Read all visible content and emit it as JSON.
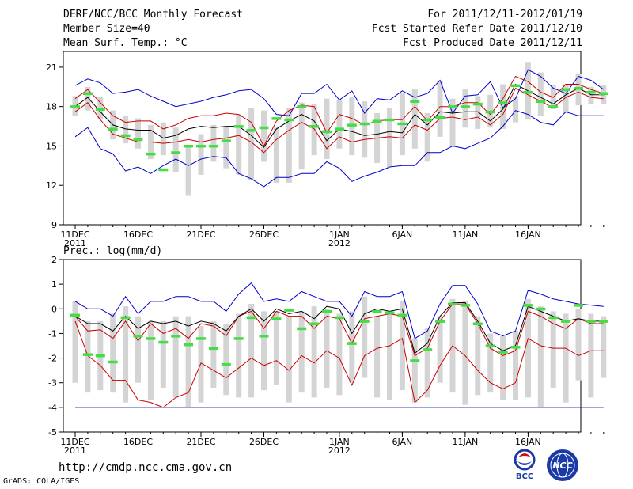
{
  "header": {
    "title": "DERF/NCC/BCC Monthly Forecast",
    "member_size": "Member Size=40",
    "date_range": "For 2011/12/11-2012/01/19",
    "started_refer": "Fcst Started Refer Date 2011/12/10",
    "produced": "Fcst Produced Date 2011/12/11"
  },
  "footer": {
    "url": "http://cmdp.ncc.cma.gov.cn",
    "credit": "GrADS: COLA/IGES",
    "logo_bcc": "BCC",
    "logo_ncc": "NCC"
  },
  "chart_data": [
    {
      "type": "line",
      "title": "Mean Surf. Temp.: °C",
      "ylim": [
        9,
        22.2
      ],
      "yticks": [
        9,
        12,
        15,
        18,
        21
      ],
      "x_tick_days": [
        0,
        5,
        10,
        15,
        21,
        26,
        31,
        36
      ],
      "x_tick_labels": [
        "11DEC",
        "16DEC",
        "21DEC",
        "26DEC",
        "1JAN",
        "6JAN",
        "11JAN",
        "16JAN"
      ],
      "year_labels": [
        {
          "day": 0,
          "text": "2011"
        },
        {
          "day": 21,
          "text": "2012"
        }
      ],
      "colors": {
        "box": "#d4d4d4",
        "median": "#44dd44",
        "max": "#0000cc",
        "upper": "#cc0000",
        "mean": "#000000"
      },
      "box_low": [
        17.3,
        17.7,
        17.0,
        15.5,
        15.2,
        14.8,
        14.0,
        14.3,
        13.0,
        11.2,
        12.8,
        13.8,
        13.3,
        12.8,
        12.4,
        13.8,
        12.2,
        12.2,
        13.2,
        14.3,
        14.0,
        14.8,
        14.3,
        14.1,
        13.7,
        13.4,
        14.3,
        14.8,
        13.8,
        15.7,
        15.0,
        16.4,
        16.3,
        16.4,
        16.3,
        16.8,
        17.0,
        17.3,
        17.8,
        17.5,
        18.1,
        18.2,
        18.2
      ],
      "box_high": [
        18.8,
        19.5,
        18.7,
        17.7,
        17.3,
        17.1,
        16.6,
        16.8,
        16.4,
        15.0,
        15.9,
        16.6,
        16.5,
        17.4,
        17.9,
        17.7,
        16.4,
        17.9,
        18.3,
        18.2,
        18.6,
        18.5,
        18.7,
        18.4,
        17.5,
        17.9,
        19.0,
        19.3,
        17.5,
        20.0,
        18.6,
        19.3,
        18.8,
        18.9,
        19.7,
        18.7,
        21.4,
        20.6,
        19.6,
        19.7,
        20.5,
        19.5,
        19.6
      ],
      "median": [
        18.0,
        19.0,
        17.8,
        16.3,
        15.8,
        15.5,
        14.4,
        13.2,
        14.5,
        15.0,
        15.0,
        15.0,
        15.4,
        16.5,
        16.2,
        16.4,
        17.1,
        17.0,
        18.0,
        16.5,
        16.1,
        16.3,
        16.6,
        16.7,
        16.9,
        17.0,
        16.7,
        18.4,
        17.0,
        17.2,
        18.0,
        18.0,
        18.2,
        17.6,
        18.3,
        19.6,
        19.1,
        18.4,
        18.0,
        19.3,
        19.4,
        19.1,
        19.0
      ],
      "max": [
        19.6,
        20.1,
        19.8,
        19.0,
        19.1,
        19.3,
        18.8,
        18.4,
        18.0,
        18.2,
        18.4,
        18.7,
        18.9,
        19.2,
        19.3,
        18.6,
        17.4,
        17.3,
        19.0,
        19.0,
        19.7,
        18.5,
        19.2,
        17.5,
        18.6,
        18.5,
        19.2,
        18.7,
        19.0,
        20.0,
        17.5,
        18.8,
        18.9,
        19.9,
        17.9,
        18.6,
        20.8,
        20.3,
        19.4,
        19.0,
        20.3,
        20.0,
        19.3
      ],
      "upper": [
        18.6,
        19.3,
        18.3,
        17.3,
        16.8,
        16.9,
        16.9,
        16.3,
        16.6,
        17.1,
        17.3,
        17.3,
        17.5,
        17.4,
        16.8,
        15.0,
        16.9,
        17.7,
        18.1,
        18.0,
        16.0,
        17.4,
        17.1,
        16.6,
        16.9,
        17.0,
        17.0,
        18.0,
        16.9,
        18.0,
        18.0,
        18.3,
        18.3,
        17.4,
        18.6,
        20.3,
        19.9,
        19.1,
        18.7,
        19.7,
        19.7,
        19.3,
        19.0
      ],
      "mean": [
        18.0,
        18.7,
        17.6,
        16.6,
        16.3,
        16.2,
        16.2,
        15.6,
        15.8,
        16.3,
        16.5,
        16.4,
        16.5,
        16.5,
        15.8,
        14.9,
        16.3,
        16.9,
        17.4,
        16.9,
        15.4,
        16.3,
        16.1,
        15.8,
        15.9,
        16.1,
        16.0,
        17.4,
        16.6,
        17.6,
        17.5,
        17.6,
        17.6,
        16.9,
        17.8,
        19.7,
        19.2,
        18.7,
        18.2,
        18.9,
        19.4,
        18.9,
        18.9
      ],
      "lower": [
        17.6,
        18.3,
        17.0,
        15.9,
        15.6,
        15.3,
        15.3,
        15.2,
        15.3,
        15.5,
        15.3,
        15.5,
        15.6,
        15.8,
        15.3,
        14.5,
        15.5,
        16.2,
        16.8,
        16.3,
        14.8,
        15.7,
        15.3,
        15.5,
        15.6,
        15.7,
        15.6,
        16.6,
        16.2,
        17.1,
        17.2,
        17.0,
        17.2,
        16.6,
        17.4,
        19.4,
        18.9,
        18.4,
        17.9,
        18.7,
        19.1,
        18.7,
        18.6
      ],
      "min": [
        15.7,
        16.4,
        14.8,
        14.4,
        13.1,
        13.4,
        12.9,
        13.5,
        14.0,
        13.5,
        14.0,
        14.2,
        14.1,
        12.9,
        12.5,
        11.9,
        12.6,
        12.6,
        12.9,
        12.9,
        13.8,
        13.3,
        12.3,
        12.7,
        13.0,
        13.4,
        13.5,
        13.5,
        14.5,
        14.5,
        15.0,
        14.8,
        15.2,
        15.6,
        16.5,
        17.7,
        17.4,
        16.8,
        16.6,
        17.6,
        17.3,
        17.3,
        17.3
      ]
    },
    {
      "type": "line",
      "title": "Prec.: log(mm/d)",
      "ylim": [
        -5,
        2
      ],
      "yticks": [
        -5,
        -4,
        -3,
        -2,
        -1,
        0,
        1,
        2
      ],
      "x_tick_days": [
        0,
        5,
        10,
        15,
        21,
        26,
        31,
        36
      ],
      "x_tick_labels": [
        "11DEC",
        "16DEC",
        "21DEC",
        "26DEC",
        "1JAN",
        "6JAN",
        "11JAN",
        "16JAN"
      ],
      "year_labels": [
        {
          "day": 0,
          "text": "2011"
        },
        {
          "day": 21,
          "text": "2012"
        }
      ],
      "floor": -4,
      "colors": {
        "box": "#d4d4d4",
        "median": "#44dd44",
        "max": "#0000cc",
        "upper": "#cc0000",
        "mean": "#000000",
        "floor": "#0000aa"
      },
      "box_low": [
        -3.0,
        -3.4,
        -3.3,
        -3.4,
        -3.8,
        -3.0,
        -3.7,
        -3.2,
        -3.6,
        -4.0,
        -3.8,
        -3.2,
        -3.5,
        -3.6,
        -3.6,
        -3.3,
        -3.1,
        -3.8,
        -3.4,
        -3.6,
        -3.2,
        -3.5,
        -3.0,
        -2.8,
        -3.6,
        -3.7,
        -3.3,
        -3.8,
        -3.6,
        -3.0,
        -3.4,
        -3.9,
        -3.5,
        -3.4,
        -3.7,
        -3.7,
        -3.6,
        -4.0,
        -3.2,
        -3.8,
        -2.9,
        -3.6,
        -2.8
      ],
      "box_high": [
        0.3,
        -0.5,
        -0.5,
        -0.2,
        0.1,
        -0.3,
        -0.5,
        -0.5,
        -0.3,
        -0.3,
        -0.7,
        -0.5,
        -0.6,
        -0.2,
        0.2,
        -0.1,
        -0.1,
        -0.3,
        -0.1,
        0.1,
        0.0,
        -0.2,
        -0.1,
        0.5,
        -0.3,
        -0.2,
        0.3,
        -1.2,
        -0.8,
        -0.3,
        0.4,
        0.3,
        -0.3,
        -1.0,
        -1.1,
        -0.9,
        0.4,
        0.1,
        -0.1,
        -0.2,
        0.0,
        -0.2,
        -0.3
      ],
      "median": [
        -0.25,
        -1.85,
        -1.9,
        -2.15,
        -0.35,
        -1.1,
        -1.2,
        -1.35,
        -1.1,
        -1.45,
        -1.2,
        -1.6,
        -2.25,
        -1.2,
        -0.35,
        -1.1,
        -0.4,
        -0.05,
        -0.8,
        -0.6,
        -0.1,
        -0.35,
        -1.4,
        -0.5,
        -0.1,
        -0.15,
        -0.25,
        -2.1,
        -1.65,
        -0.5,
        0.2,
        0.15,
        -0.6,
        -1.5,
        -1.75,
        -1.55,
        0.15,
        0.0,
        -0.35,
        -0.5,
        0.15,
        -0.5,
        -0.5
      ],
      "max": [
        0.3,
        0.0,
        0.0,
        -0.3,
        0.5,
        -0.2,
        0.3,
        0.3,
        0.5,
        0.5,
        0.3,
        0.3,
        -0.1,
        0.6,
        1.05,
        0.3,
        0.4,
        0.3,
        0.7,
        0.5,
        0.3,
        0.3,
        -0.3,
        0.7,
        0.5,
        0.5,
        0.7,
        -1.2,
        -0.9,
        0.2,
        0.95,
        0.95,
        0.2,
        -0.9,
        -1.1,
        -0.9,
        0.75,
        0.6,
        0.4,
        0.3,
        0.2,
        0.15,
        0.1
      ],
      "upper": [
        -0.3,
        -0.9,
        -0.85,
        -1.2,
        -0.5,
        -1.3,
        -0.6,
        -1.0,
        -0.8,
        -1.2,
        -0.6,
        -0.7,
        -1.1,
        -0.3,
        -0.1,
        -0.8,
        -0.1,
        -0.3,
        -0.3,
        -0.8,
        -0.3,
        -0.4,
        -1.4,
        -0.4,
        -0.3,
        -0.2,
        -0.3,
        -1.9,
        -1.6,
        -0.5,
        0.2,
        0.2,
        -0.6,
        -1.6,
        -1.9,
        -1.7,
        -0.1,
        -0.3,
        -0.6,
        -0.8,
        -0.4,
        -0.6,
        -0.6
      ],
      "mean": [
        -0.3,
        -0.6,
        -0.6,
        -0.9,
        -0.3,
        -0.8,
        -0.5,
        -0.6,
        -0.5,
        -0.7,
        -0.5,
        -0.6,
        -0.9,
        -0.3,
        0.0,
        -0.5,
        0.0,
        -0.2,
        -0.1,
        -0.4,
        0.1,
        0.0,
        -1.0,
        -0.2,
        0.0,
        -0.1,
        0.0,
        -1.8,
        -1.4,
        -0.3,
        0.25,
        0.25,
        -0.5,
        -1.4,
        -1.7,
        -1.5,
        0.1,
        -0.1,
        -0.3,
        -0.5,
        -0.4,
        -0.5,
        -0.5
      ],
      "lower": [
        -0.5,
        -1.9,
        -2.3,
        -2.9,
        -2.9,
        -3.7,
        -3.8,
        -4.0,
        -3.6,
        -3.4,
        -2.2,
        -2.5,
        -2.8,
        -2.4,
        -2.0,
        -2.3,
        -2.1,
        -2.5,
        -1.9,
        -2.2,
        -1.7,
        -2.0,
        -3.1,
        -1.9,
        -1.6,
        -1.5,
        -1.2,
        -3.8,
        -3.3,
        -2.3,
        -1.5,
        -1.9,
        -2.5,
        -3.0,
        -3.25,
        -3.0,
        -1.2,
        -1.5,
        -1.6,
        -1.6,
        -1.9,
        -1.7,
        -1.7
      ],
      "min": [
        -4,
        -4,
        -4,
        -4,
        -4,
        -4,
        -4,
        -4,
        -4,
        -4,
        -4,
        -4,
        -4,
        -4,
        -4,
        -4,
        -4,
        -4,
        -4,
        -4,
        -4,
        -4,
        -4,
        -4,
        -4,
        -4,
        -4,
        -4,
        -4,
        -4,
        -4,
        -4,
        -4,
        -4,
        -4,
        -4,
        -4,
        -4,
        -4,
        -4,
        -4,
        -4,
        -4
      ]
    }
  ]
}
